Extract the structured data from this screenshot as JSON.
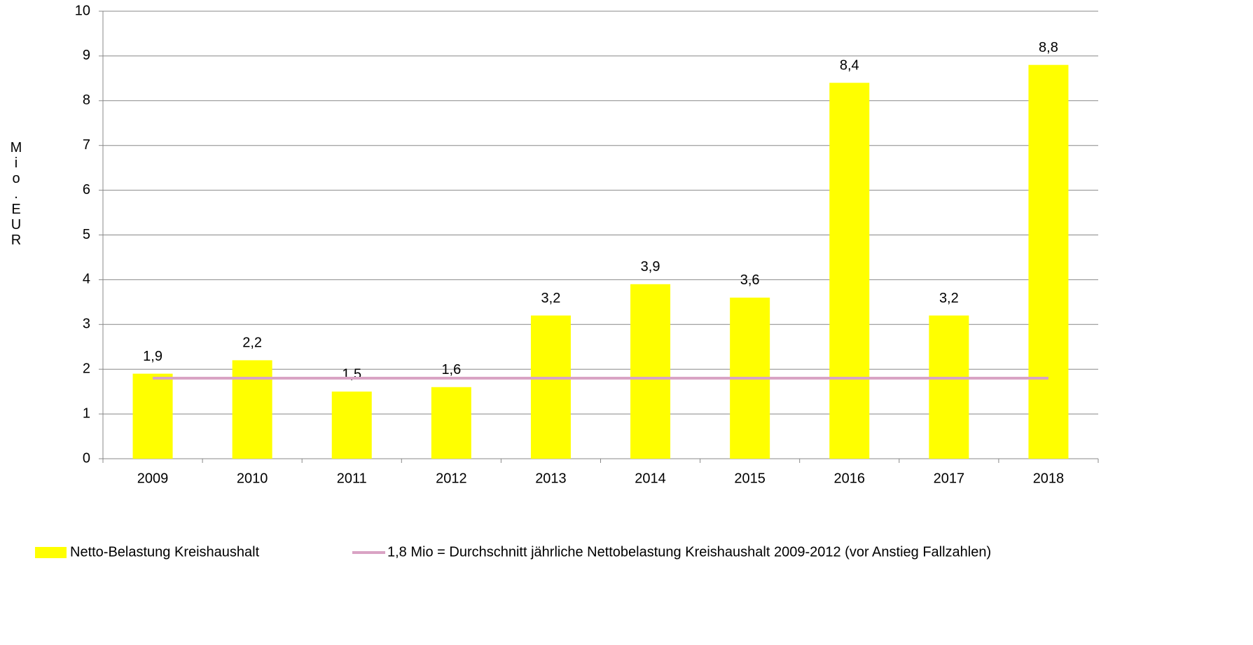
{
  "chart_data": {
    "type": "bar",
    "y_label": "Mio.EUR",
    "categories": [
      "2009",
      "2010",
      "2011",
      "2012",
      "2013",
      "2014",
      "2015",
      "2016",
      "2017",
      "2018"
    ],
    "series": [
      {
        "name": "Netto-Belastung Kreishaushalt",
        "type": "bar",
        "color": "#ffff00",
        "values": [
          1.9,
          2.2,
          1.5,
          1.6,
          3.2,
          3.9,
          3.6,
          8.4,
          3.2,
          8.8
        ],
        "value_labels": [
          "1,9",
          "2,2",
          "1,5",
          "1,6",
          "3,2",
          "3,9",
          "3,6",
          "8,4",
          "3,2",
          "8,8"
        ]
      },
      {
        "name": "1,8 Mio = Durchschnitt jährliche Nettobelastung Kreishaushalt 2009-2012 (vor Anstieg Fallzahlen)",
        "type": "line",
        "color": "#d9a3c4",
        "values": [
          1.8,
          1.8,
          1.8,
          1.8,
          1.8,
          1.8,
          1.8,
          1.8,
          1.8,
          1.8
        ]
      }
    ],
    "ylim": [
      0,
      10
    ],
    "yticks": [
      0,
      1,
      2,
      3,
      4,
      5,
      6,
      7,
      8,
      9,
      10
    ],
    "grid": true,
    "legend": "bottom"
  }
}
